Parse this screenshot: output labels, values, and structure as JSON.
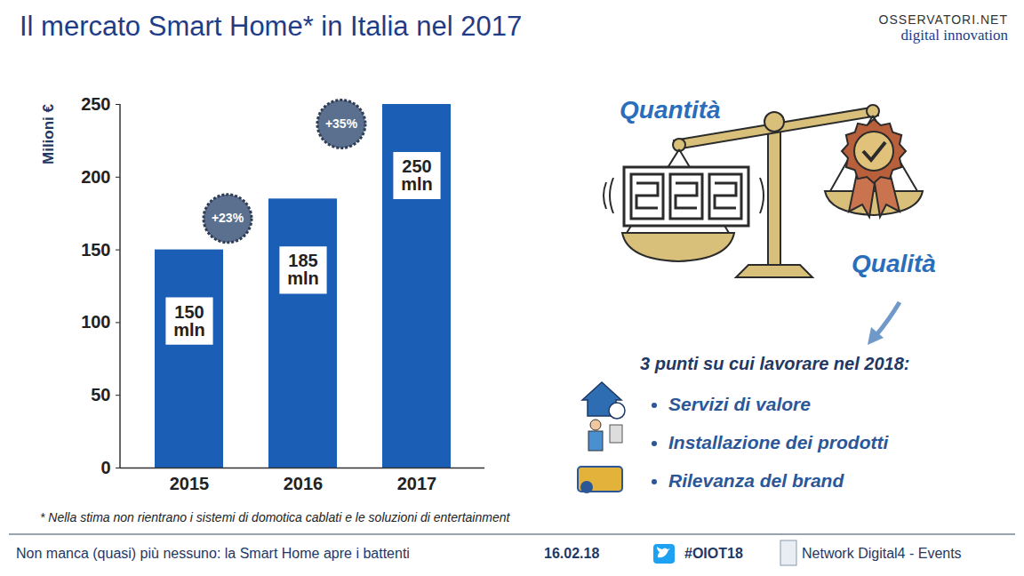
{
  "chart_data": {
    "type": "bar",
    "title": "Il mercato Smart Home* in Italia nel 2017",
    "y_label": "Milioni €",
    "categories": [
      "2015",
      "2016",
      "2017"
    ],
    "values": [
      150,
      185,
      250
    ],
    "value_labels": [
      "150 mln",
      "185 mln",
      "250 mln"
    ],
    "data_labels": true,
    "color": "#1a5eb5",
    "ylim": [
      0,
      250
    ],
    "yticks": [
      0,
      50,
      100,
      150,
      200,
      250
    ],
    "grid": false,
    "annotations": [
      {
        "category": "2016",
        "text": "+23%"
      },
      {
        "category": "2017",
        "text": "+35%"
      }
    ],
    "footnote": "* Nella stima non rientrano i sistemi di domotica cablati e le soluzioni di entertainment"
  },
  "header": {
    "logo": [
      "OSSERVATORI.NET",
      "digital innovation"
    ]
  },
  "panel": {
    "left_label": "Quantità",
    "right_label": "Qualità",
    "list_title": "3 punti su cui lavorare nel 2018:",
    "items": [
      "Servizi di valore",
      "Installazione dei prodotti",
      "Rilevanza del brand"
    ]
  },
  "footer": {
    "tagline": "Non manca (quasi) più nessuno: la Smart Home apre i battenti",
    "date": "16.02.18",
    "hashtag": "#OIOT18",
    "network": "Network Digital4 - Events"
  }
}
